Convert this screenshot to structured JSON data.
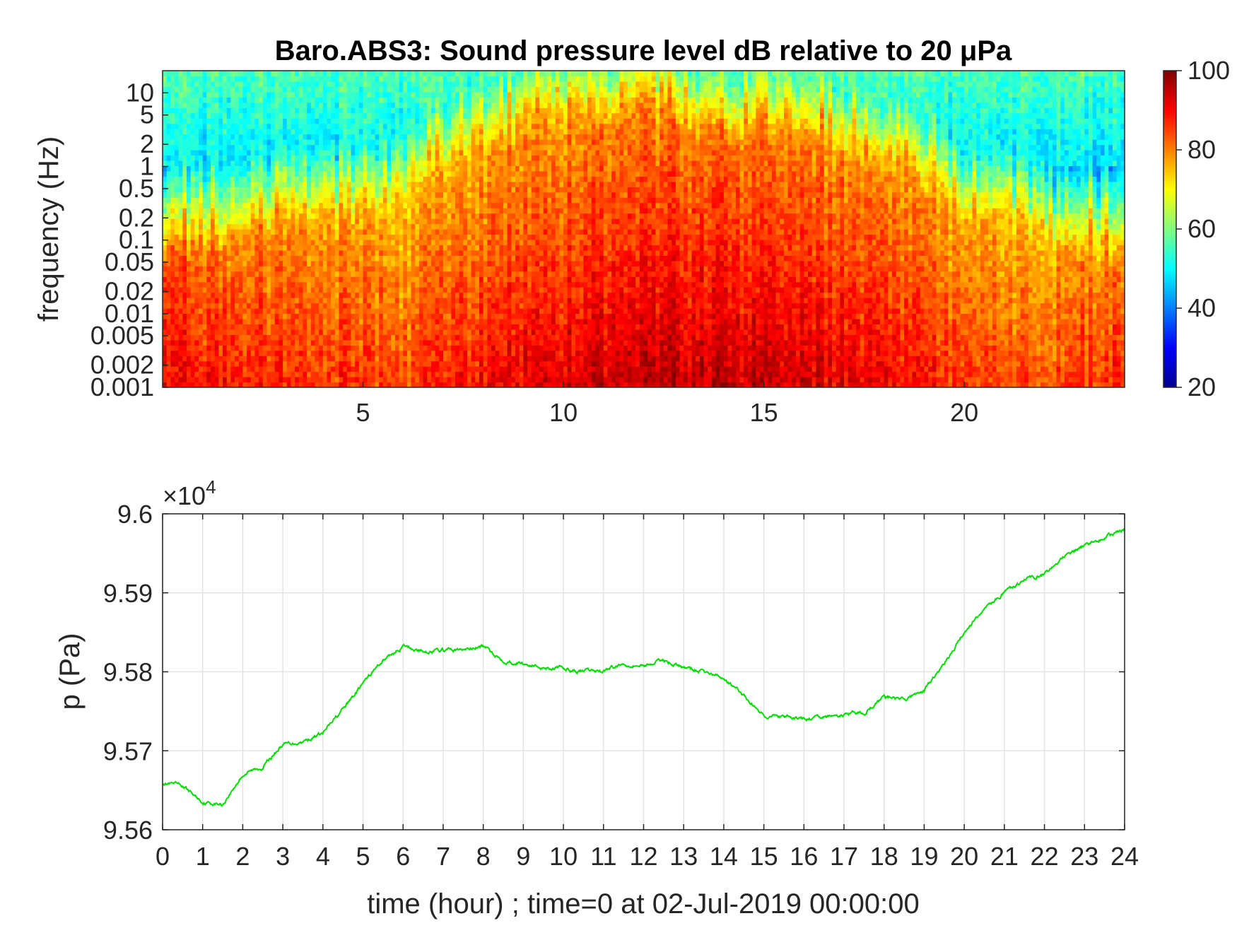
{
  "chart_data": [
    {
      "type": "heatmap",
      "title": "Baro.ABS3: Sound pressure level dB relative to 20 μPa",
      "ylabel": "frequency (Hz)",
      "xlabel": "",
      "x_ticks": [
        5,
        10,
        15,
        20
      ],
      "xlim": [
        0,
        24
      ],
      "y_scale": "log",
      "y_ticks": [
        "10",
        "5",
        "2",
        "1",
        "0.5",
        "0.2",
        "0.1",
        "0.05",
        "0.02",
        "0.01",
        "0.005",
        "0.002",
        "0.001"
      ],
      "ylim": [
        0.001,
        20
      ],
      "colormap": "jet",
      "colorbar": {
        "ticks": [
          "100",
          "80",
          "60",
          "40",
          "20"
        ],
        "range": [
          20,
          100
        ]
      },
      "level_profile_by_hour": {
        "hours": [
          0,
          2,
          4,
          6,
          8,
          10,
          12,
          14,
          16,
          18,
          20,
          22,
          24
        ],
        "low_freq_level_db": [
          90,
          88,
          87,
          85,
          90,
          93,
          95,
          94,
          93,
          90,
          86,
          84,
          88
        ],
        "high_freq_extent_hz": [
          0.05,
          0.1,
          0.2,
          0.3,
          2,
          5,
          5,
          3,
          3,
          1,
          0.2,
          0.1,
          0.05
        ]
      }
    },
    {
      "type": "line",
      "title": "",
      "xlabel": "time (hour) ; time=0 at 02-Jul-2019 00:00:00",
      "ylabel": "p (Pa)",
      "xlim": [
        0,
        24
      ],
      "ylim": [
        95600,
        96000
      ],
      "x_ticks": [
        "0",
        "1",
        "2",
        "3",
        "4",
        "5",
        "6",
        "7",
        "8",
        "9",
        "10",
        "11",
        "12",
        "13",
        "14",
        "15",
        "16",
        "17",
        "18",
        "19",
        "20",
        "21",
        "22",
        "23",
        "24"
      ],
      "y_ticks": [
        "9.56",
        "9.57",
        "9.58",
        "9.59",
        "9.6"
      ],
      "y_multiplier": {
        "base": "×10",
        "exp": "4"
      },
      "grid": true,
      "series": [
        {
          "color": "#00dd00",
          "x": [
            0,
            0.5,
            1,
            1.5,
            2,
            2.5,
            3,
            3.5,
            4,
            4.5,
            5,
            5.5,
            6,
            6.5,
            7,
            7.5,
            8,
            8.5,
            9,
            9.5,
            10,
            10.5,
            11,
            11.5,
            12,
            12.5,
            13,
            13.5,
            14,
            14.5,
            15,
            15.5,
            16,
            16.5,
            17,
            17.5,
            18,
            18.5,
            19,
            19.5,
            20,
            20.5,
            21,
            21.5,
            22,
            22.5,
            23,
            23.5,
            24
          ],
          "y": [
            95660,
            95655,
            95635,
            95632,
            95670,
            95680,
            95708,
            95712,
            95722,
            95752,
            95785,
            95815,
            95832,
            95826,
            95827,
            95828,
            95832,
            95815,
            95810,
            95806,
            95804,
            95800,
            95802,
            95810,
            95808,
            95815,
            95805,
            95800,
            95792,
            95770,
            95745,
            95742,
            95740,
            95742,
            95745,
            95748,
            95768,
            95764,
            95776,
            95810,
            95850,
            95880,
            95900,
            95915,
            95925,
            95945,
            95960,
            95970,
            95980
          ]
        }
      ]
    }
  ]
}
